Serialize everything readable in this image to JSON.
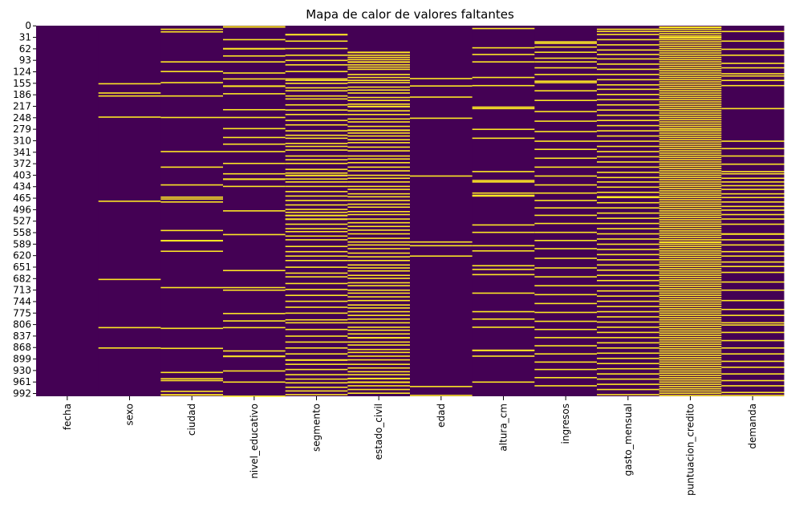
{
  "chart_data": {
    "type": "heatmap",
    "title": "Mapa de calor de valores faltantes",
    "xlabel": "",
    "ylabel": "",
    "colors": {
      "present": "#440154",
      "missing": "#fde725"
    },
    "legend": "none",
    "grid": false,
    "row_count": 1000,
    "y_ticks": [
      0,
      31,
      62,
      93,
      124,
      155,
      186,
      217,
      248,
      279,
      310,
      341,
      372,
      403,
      434,
      465,
      496,
      527,
      558,
      589,
      620,
      651,
      682,
      713,
      744,
      775,
      806,
      837,
      868,
      899,
      930,
      961,
      992
    ],
    "columns": [
      {
        "name": "fecha",
        "missing_rows": []
      },
      {
        "name": "sexo",
        "missing_rows": [
          155,
          180,
          188,
          245,
          472,
          683,
          813,
          868
        ]
      },
      {
        "name": "ciudad",
        "missing_rows": [
          8,
          15,
          96,
          122,
          152,
          188,
          246,
          338,
          380,
          428,
          461,
          466,
          474,
          551,
          578,
          579,
          607,
          705,
          815,
          869,
          934,
          951,
          956,
          985,
          994,
          995
        ]
      },
      {
        "name": "nivel_educativo",
        "missing_rows": [
          1,
          2,
          36,
          60,
          61,
          80,
          96,
          126,
          142,
          161,
          162,
          182,
          225,
          246,
          276,
          300,
          318,
          338,
          370,
          398,
          412,
          413,
          432,
          498,
          562,
          659,
          705,
          712,
          775,
          795,
          813,
          876,
          890,
          891,
          930,
          960,
          998
        ]
      },
      {
        "name": "segmento",
        "missing_rows": [
          22,
          23,
          40,
          60,
          78,
          92,
          104,
          122,
          142,
          146,
          154,
          166,
          174,
          188,
          196,
          212,
          226,
          238,
          254,
          266,
          282,
          294,
          302,
          316,
          324,
          334,
          350,
          360,
          370,
          386,
          396,
          402,
          403,
          412,
          420,
          432,
          446,
          458,
          470,
          482,
          494,
          502,
          510,
          511,
          520,
          521,
          534,
          546,
          554,
          566,
          576,
          594,
          608,
          620,
          632,
          650,
          666,
          676,
          694,
          710,
          726,
          742,
          758,
          774,
          792,
          800,
          818,
          836,
          852,
          868,
          884,
          900,
          901,
          912,
          926,
          940,
          952,
          962,
          974,
          984,
          994
        ]
      },
      {
        "name": "estado_civil",
        "missing_rows": [
          70,
          71,
          78,
          84,
          90,
          96,
          97,
          104,
          110,
          116,
          130,
          138,
          146,
          152,
          164,
          172,
          180,
          192,
          200,
          210,
          216,
          217,
          228,
          238,
          250,
          258,
          270,
          280,
          281,
          288,
          296,
          306,
          314,
          326,
          336,
          350,
          358,
          368,
          380,
          390,
          402,
          410,
          420,
          432,
          440,
          452,
          460,
          470,
          480,
          488,
          500,
          508,
          520,
          530,
          540,
          550,
          560,
          572,
          582,
          590,
          600,
          612,
          622,
          632,
          644,
          652,
          660,
          672,
          680,
          692,
          700,
          712,
          720,
          730,
          740,
          752,
          760,
          770,
          780,
          790,
          800,
          812,
          820,
          830,
          840,
          841,
          852,
          860,
          872,
          880,
          890,
          900,
          912,
          922,
          932,
          940,
          950,
          951,
          960,
          961,
          970,
          980,
          990
        ]
      },
      {
        "name": "edad",
        "missing_rows": [
          141,
          161,
          191,
          248,
          404,
          582,
          592,
          620,
          972,
          996
        ]
      },
      {
        "name": "altura_cm",
        "missing_rows": [
          6,
          58,
          76,
          96,
          138,
          160,
          218,
          222,
          278,
          302,
          392,
          416,
          420,
          450,
          456,
          458,
          536,
          556,
          592,
          606,
          646,
          656,
          670,
          720,
          770,
          790,
          812,
          874,
          875,
          890,
          960
        ]
      },
      {
        "name": "ingresos",
        "missing_rows": [
          42,
          46,
          56,
          70,
          86,
          96,
          112,
          130,
          148,
          152,
          174,
          200,
          230,
          256,
          284,
          310,
          332,
          356,
          380,
          404,
          428,
          450,
          470,
          490,
          510,
          532,
          556,
          578,
          600,
          626,
          652,
          676,
          700,
          724,
          748,
          772,
          796,
          818,
          840,
          862,
          884,
          906,
          926,
          948,
          970
        ]
      },
      {
        "name": "gasto_mensual",
        "missing_rows": [
          8,
          14,
          22,
          36,
          50,
          64,
          76,
          88,
          102,
          116,
          130,
          144,
          158,
          170,
          184,
          198,
          212,
          226,
          240,
          254,
          268,
          282,
          296,
          310,
          324,
          338,
          352,
          366,
          380,
          394,
          408,
          420,
          434,
          448,
          460,
          462,
          476,
          490,
          504,
          518,
          532,
          546,
          560,
          574,
          588,
          602,
          616,
          630,
          644,
          658,
          672,
          686,
          700,
          714,
          728,
          742,
          756,
          770,
          784,
          798,
          812,
          826,
          840,
          854,
          868,
          882,
          896,
          910,
          924,
          938,
          952,
          966,
          980,
          994
        ]
      },
      {
        "name": "puntuacion_credito",
        "missing_rows": [
          2,
          3,
          8,
          14,
          20,
          26,
          30,
          31,
          36,
          42,
          48,
          54,
          60,
          66,
          72,
          78,
          84,
          90,
          96,
          102,
          108,
          114,
          120,
          126,
          132,
          138,
          144,
          150,
          156,
          162,
          168,
          174,
          180,
          186,
          192,
          198,
          204,
          210,
          216,
          222,
          228,
          234,
          240,
          246,
          252,
          258,
          264,
          270,
          276,
          277,
          282,
          288,
          294,
          300,
          306,
          312,
          318,
          324,
          330,
          336,
          342,
          348,
          354,
          360,
          366,
          372,
          378,
          384,
          390,
          396,
          402,
          408,
          414,
          420,
          426,
          432,
          438,
          444,
          450,
          456,
          462,
          468,
          474,
          480,
          486,
          492,
          498,
          504,
          510,
          516,
          522,
          528,
          534,
          540,
          546,
          552,
          558,
          564,
          570,
          576,
          582,
          583,
          588,
          594,
          600,
          606,
          612,
          618,
          624,
          630,
          636,
          642,
          648,
          654,
          660,
          666,
          672,
          678,
          684,
          690,
          696,
          702,
          708,
          714,
          720,
          726,
          732,
          738,
          744,
          750,
          756,
          762,
          768,
          774,
          780,
          786,
          792,
          798,
          804,
          810,
          816,
          822,
          828,
          834,
          840,
          846,
          852,
          858,
          864,
          870,
          876,
          882,
          888,
          894,
          900,
          906,
          912,
          918,
          924,
          930,
          936,
          942,
          948,
          954,
          960,
          966,
          972,
          978,
          984,
          990,
          996
        ]
      },
      {
        "name": "demanda",
        "missing_rows": [
          14,
          40,
          62,
          78,
          100,
          112,
          128,
          134,
          146,
          160,
          222,
          310,
          330,
          350,
          372,
          392,
          398,
          410,
          420,
          430,
          440,
          452,
          462,
          474,
          486,
          496,
          508,
          520,
          534,
          560,
          561,
          576,
          590,
          608,
          620,
          636,
          648,
          664,
          690,
          712,
          740,
          764,
          780,
          800,
          806,
          826,
          848,
          868,
          884,
          904,
          920,
          938,
          956,
          970,
          988,
          996
        ]
      }
    ]
  }
}
